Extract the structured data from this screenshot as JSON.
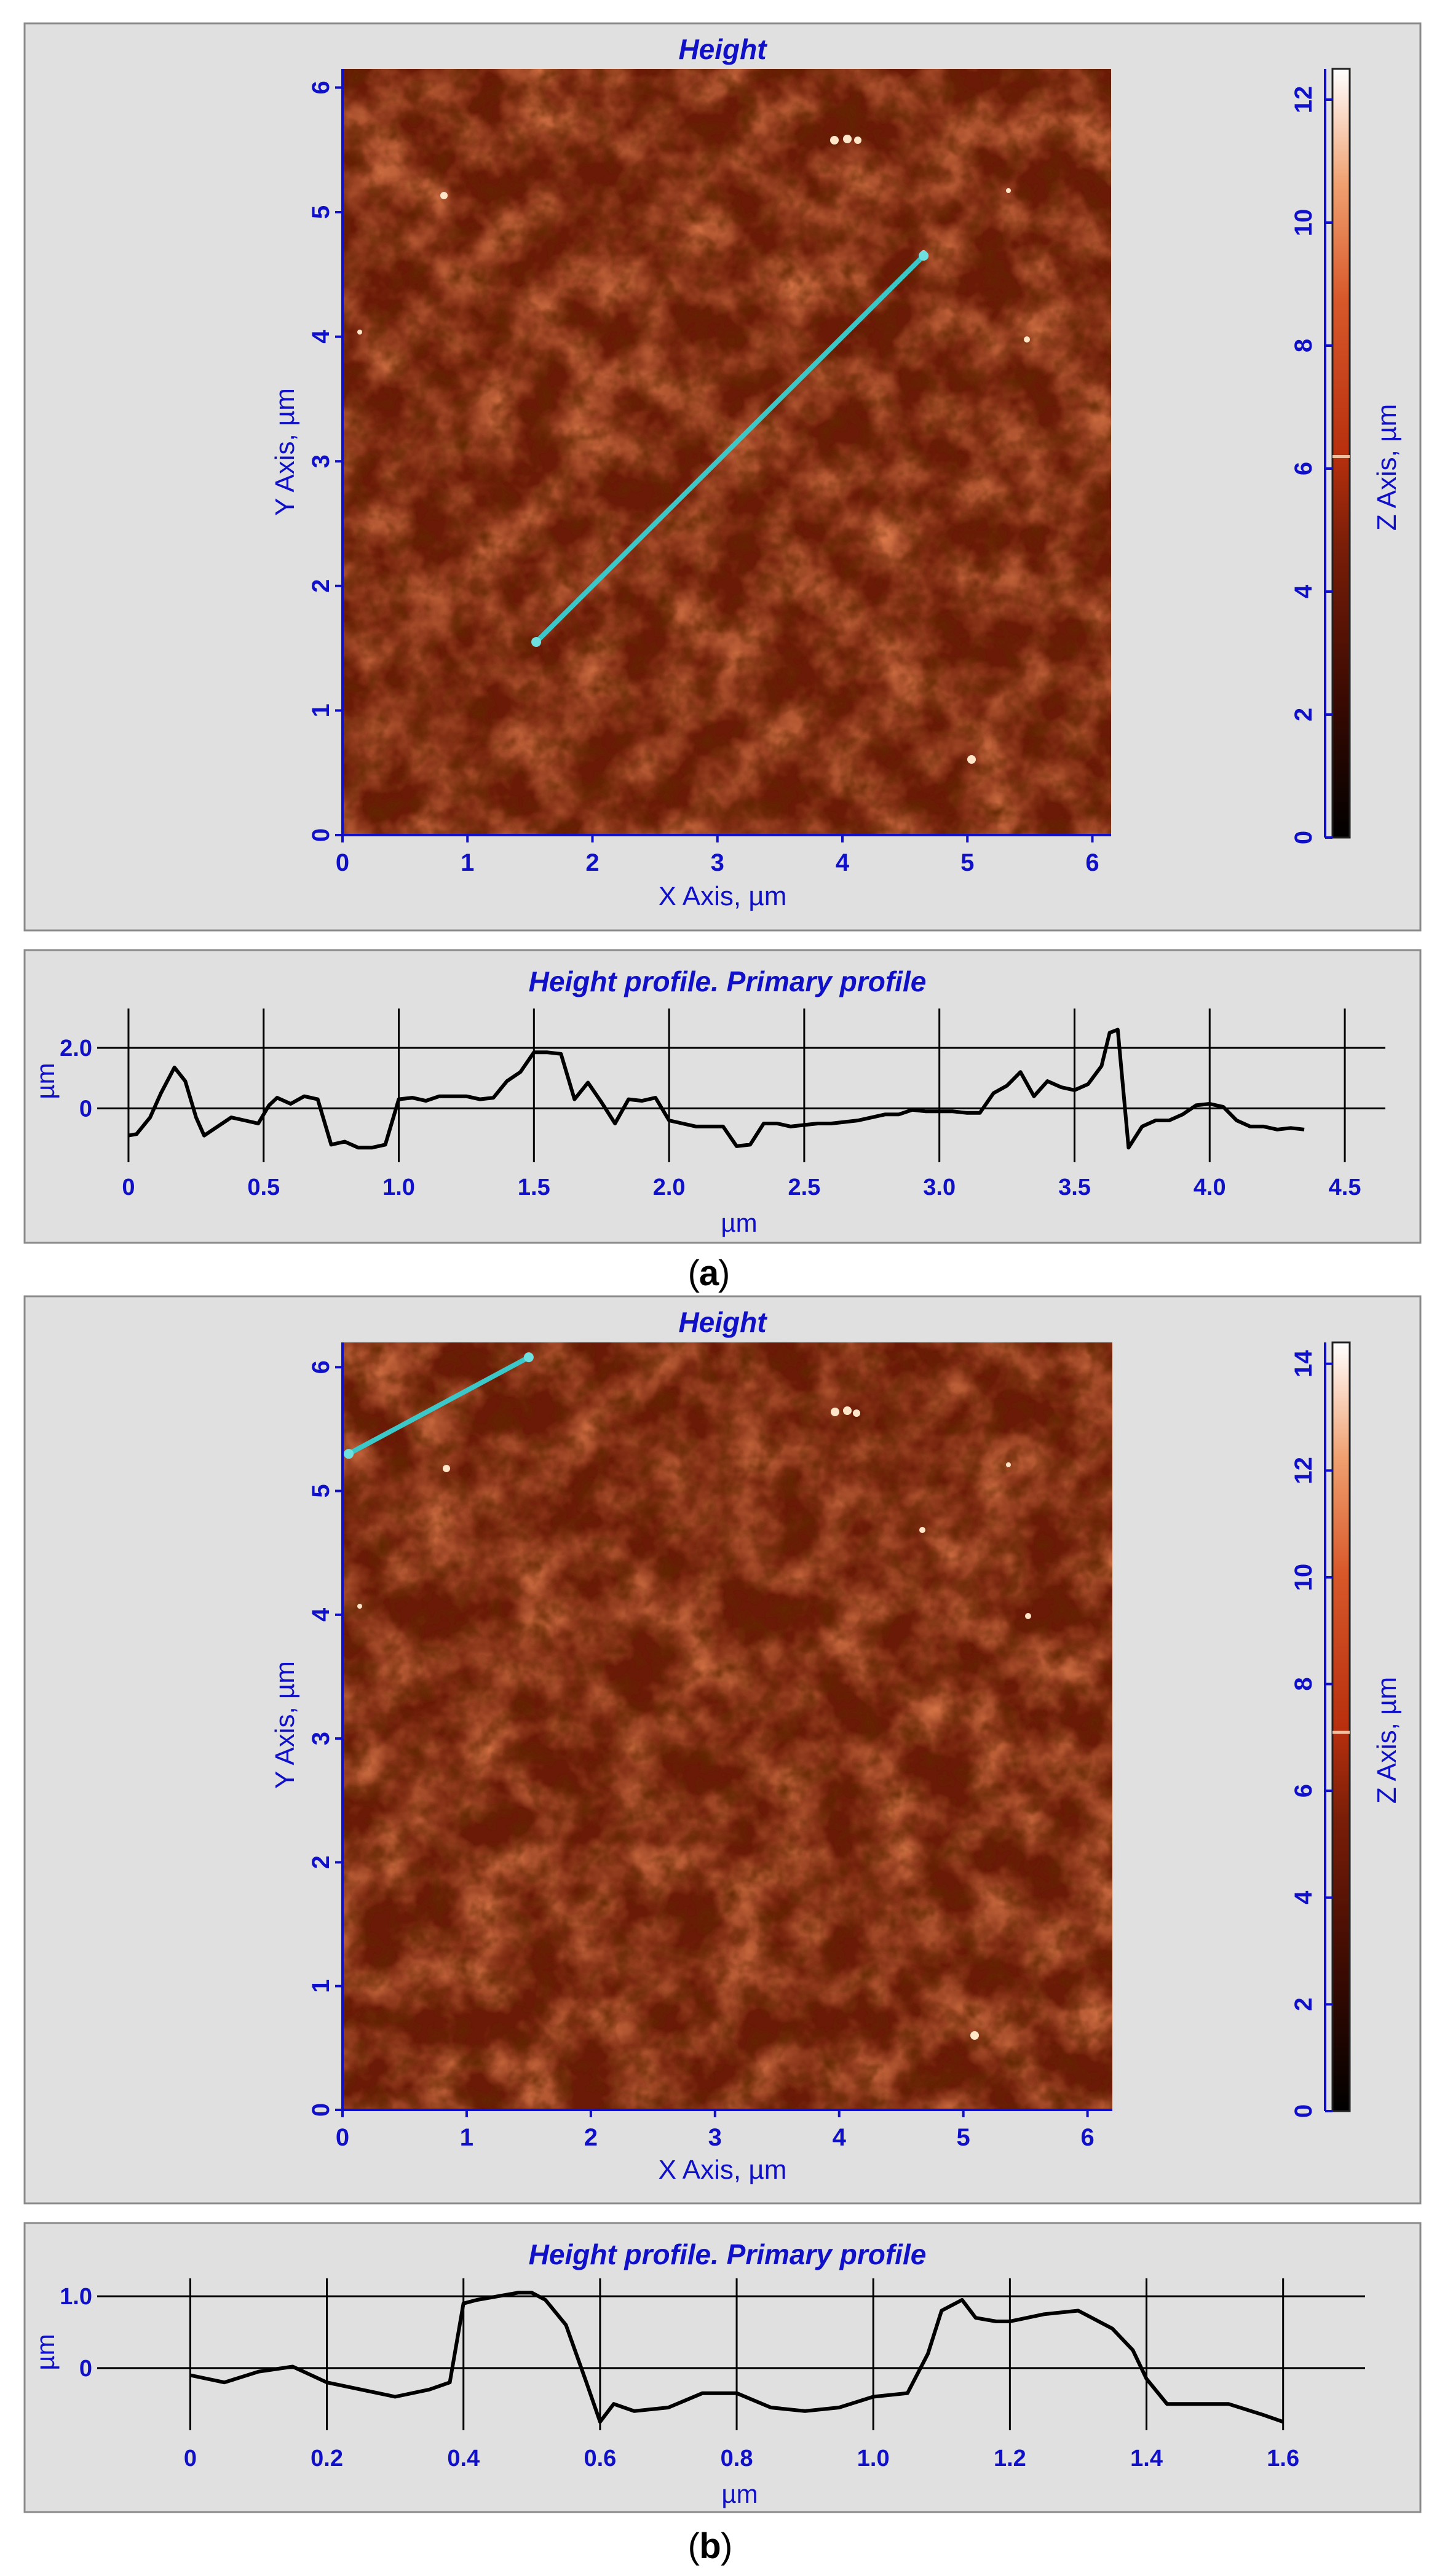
{
  "panels": [
    {
      "caption_paren_open": "(",
      "caption_letter": "a",
      "caption_paren_close": ")",
      "map": {
        "title": "Height",
        "xlabel": "X Axis, µm",
        "ylabel": "Y Axis, µm",
        "zlabel": "Z Axis, µm",
        "xticks": [
          "0",
          "1",
          "2",
          "3",
          "4",
          "5",
          "6"
        ],
        "yticks": [
          "0",
          "1",
          "2",
          "3",
          "4",
          "5",
          "6"
        ],
        "zticks": [
          "0",
          "2",
          "4",
          "6",
          "8",
          "10",
          "12"
        ],
        "xlim": [
          0,
          6.15
        ],
        "ylim": [
          0,
          6.15
        ],
        "zlim": [
          0,
          12.5
        ],
        "colorbar_marker_z": 6.2,
        "line": {
          "x1": 1.55,
          "y1": 1.55,
          "x2": 4.65,
          "y2": 4.65,
          "color": "#3cc8c8"
        }
      },
      "profile": {
        "title": "Height profile. Primary profile",
        "xlabel": "µm",
        "ylabel": "µm",
        "xticks": [
          "0",
          "0.5",
          "1.0",
          "1.5",
          "2.0",
          "2.5",
          "3.0",
          "3.5",
          "4.0",
          "4.5"
        ],
        "yticks": [
          "0",
          "2.0"
        ],
        "xlim": [
          -0.1,
          4.65
        ],
        "ylim": [
          -1.7,
          3.3
        ]
      }
    },
    {
      "caption_paren_open": "(",
      "caption_letter": "b",
      "caption_paren_close": ")",
      "map": {
        "title": "Height",
        "xlabel": "X Axis, µm",
        "ylabel": "Y Axis, µm",
        "zlabel": "Z Axis, µm",
        "xticks": [
          "0",
          "1",
          "2",
          "3",
          "4",
          "5",
          "6"
        ],
        "yticks": [
          "0",
          "1",
          "2",
          "3",
          "4",
          "5",
          "6"
        ],
        "zticks": [
          "0",
          "2",
          "4",
          "6",
          "8",
          "10",
          "12",
          "14"
        ],
        "xlim": [
          0,
          6.2
        ],
        "ylim": [
          0,
          6.2
        ],
        "zlim": [
          0,
          14.4
        ],
        "colorbar_marker_z": 7.1,
        "line": {
          "x1": 0.05,
          "y1": 5.3,
          "x2": 1.5,
          "y2": 6.08,
          "color": "#3cc8c8"
        }
      },
      "profile": {
        "title": "Height profile. Primary profile",
        "xlabel": "µm",
        "ylabel": "µm",
        "xticks": [
          "0",
          "0.2",
          "0.4",
          "0.6",
          "0.8",
          "1.0",
          "1.2",
          "1.4",
          "1.6"
        ],
        "yticks": [
          "0",
          "1.0"
        ],
        "xlim": [
          -0.13,
          1.72
        ],
        "ylim": [
          -0.85,
          1.25
        ]
      }
    }
  ],
  "chart_data": [
    {
      "type": "heatmap",
      "title": "Height",
      "xlabel": "X Axis, µm",
      "ylabel": "Y Axis, µm",
      "colorbar_label": "Z Axis, µm",
      "xlim": [
        0,
        6.15
      ],
      "ylim": [
        0,
        6.15
      ],
      "zlim": [
        0,
        12.5
      ],
      "profile_line": {
        "start": [
          1.55,
          1.55
        ],
        "end": [
          4.65,
          4.65
        ]
      }
    },
    {
      "type": "line",
      "title": "Height profile. Primary profile",
      "xlabel": "µm",
      "ylabel": "µm",
      "grid": true,
      "x": [
        0,
        0.03,
        0.08,
        0.12,
        0.17,
        0.21,
        0.25,
        0.28,
        0.33,
        0.38,
        0.43,
        0.48,
        0.52,
        0.55,
        0.6,
        0.65,
        0.7,
        0.75,
        0.8,
        0.85,
        0.9,
        0.95,
        1.0,
        1.05,
        1.1,
        1.15,
        1.2,
        1.25,
        1.3,
        1.35,
        1.4,
        1.45,
        1.5,
        1.55,
        1.6,
        1.65,
        1.7,
        1.75,
        1.8,
        1.85,
        1.9,
        1.95,
        2.0,
        2.05,
        2.1,
        2.15,
        2.2,
        2.25,
        2.3,
        2.35,
        2.4,
        2.45,
        2.5,
        2.55,
        2.6,
        2.65,
        2.7,
        2.75,
        2.8,
        2.85,
        2.9,
        2.95,
        3.0,
        3.05,
        3.1,
        3.15,
        3.2,
        3.25,
        3.3,
        3.35,
        3.4,
        3.45,
        3.5,
        3.55,
        3.6,
        3.63,
        3.66,
        3.7,
        3.75,
        3.8,
        3.85,
        3.9,
        3.95,
        4.0,
        4.05,
        4.1,
        4.15,
        4.2,
        4.25,
        4.3,
        4.35
      ],
      "y": [
        -0.9,
        -0.85,
        -0.3,
        0.5,
        1.35,
        0.9,
        -0.3,
        -0.9,
        -0.6,
        -0.3,
        -0.4,
        -0.5,
        0.1,
        0.35,
        0.15,
        0.4,
        0.3,
        -1.2,
        -1.1,
        -1.3,
        -1.3,
        -1.2,
        0.3,
        0.35,
        0.25,
        0.4,
        0.4,
        0.4,
        0.3,
        0.35,
        0.9,
        1.2,
        1.85,
        1.85,
        1.8,
        0.3,
        0.85,
        0.2,
        -0.5,
        0.3,
        0.25,
        0.35,
        -0.4,
        -0.5,
        -0.6,
        -0.6,
        -0.6,
        -1.25,
        -1.2,
        -0.5,
        -0.5,
        -0.6,
        -0.55,
        -0.5,
        -0.5,
        -0.45,
        -0.4,
        -0.3,
        -0.2,
        -0.2,
        -0.05,
        -0.1,
        -0.1,
        -0.1,
        -0.15,
        -0.15,
        0.5,
        0.75,
        1.2,
        0.4,
        0.9,
        0.7,
        0.6,
        0.8,
        1.4,
        2.5,
        2.6,
        -1.3,
        -0.6,
        -0.4,
        -0.4,
        -0.2,
        0.1,
        0.15,
        0.05,
        -0.4,
        -0.6,
        -0.6,
        -0.7,
        -0.65,
        -0.7
      ],
      "xlim": [
        -0.1,
        4.65
      ],
      "ylim": [
        -1.7,
        3.3
      ]
    },
    {
      "type": "heatmap",
      "title": "Height",
      "xlabel": "X Axis, µm",
      "ylabel": "Y Axis, µm",
      "colorbar_label": "Z Axis, µm",
      "xlim": [
        0,
        6.2
      ],
      "ylim": [
        0,
        6.2
      ],
      "zlim": [
        0,
        14.4
      ],
      "profile_line": {
        "start": [
          0.05,
          5.3
        ],
        "end": [
          1.5,
          6.08
        ]
      }
    },
    {
      "type": "line",
      "title": "Height profile. Primary profile",
      "xlabel": "µm",
      "ylabel": "µm",
      "grid": true,
      "x": [
        0,
        0.05,
        0.1,
        0.15,
        0.2,
        0.25,
        0.3,
        0.35,
        0.38,
        0.4,
        0.42,
        0.45,
        0.48,
        0.5,
        0.52,
        0.55,
        0.58,
        0.6,
        0.62,
        0.65,
        0.7,
        0.75,
        0.8,
        0.85,
        0.9,
        0.95,
        1.0,
        1.05,
        1.08,
        1.1,
        1.13,
        1.15,
        1.18,
        1.2,
        1.25,
        1.3,
        1.35,
        1.38,
        1.4,
        1.43,
        1.47,
        1.52,
        1.57,
        1.6
      ],
      "y": [
        -0.1,
        -0.2,
        -0.05,
        0.02,
        -0.2,
        -0.3,
        -0.4,
        -0.3,
        -0.2,
        0.9,
        0.95,
        1.0,
        1.05,
        1.05,
        0.95,
        0.6,
        -0.2,
        -0.75,
        -0.5,
        -0.6,
        -0.55,
        -0.35,
        -0.35,
        -0.55,
        -0.6,
        -0.55,
        -0.4,
        -0.35,
        0.2,
        0.8,
        0.95,
        0.7,
        0.65,
        0.65,
        0.75,
        0.8,
        0.55,
        0.25,
        -0.15,
        -0.5,
        -0.5,
        -0.5,
        -0.65,
        -0.75
      ],
      "xlim": [
        -0.13,
        1.72
      ],
      "ylim": [
        -0.85,
        1.25
      ]
    }
  ],
  "colors": {
    "panel_bg": "#e0e0e0",
    "panel_border": "#8a8a8a",
    "label_blue": "#1010c8",
    "profile_line": "#000000",
    "colormap": [
      "#000000",
      "#3a0a02",
      "#7a1e08",
      "#b8300e",
      "#e0703a",
      "#f4b888",
      "#ffffff"
    ]
  }
}
